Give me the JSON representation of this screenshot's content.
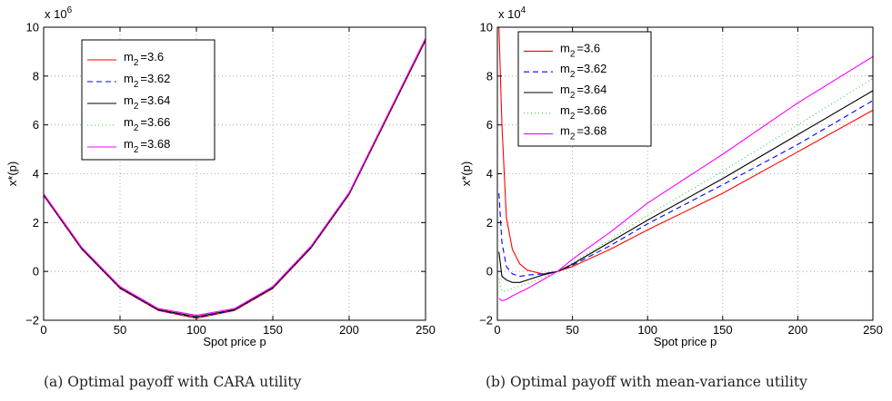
{
  "chart_data": [
    {
      "type": "line",
      "caption": "(a) Optimal payoff with CARA utility",
      "xlabel": "Spot price p",
      "ylabel": "x*(p)",
      "y_multiplier": "x 10",
      "y_multiplier_exp": "6",
      "xlim": [
        0,
        250
      ],
      "ylim": [
        -2,
        10
      ],
      "xticks": [
        0,
        50,
        100,
        150,
        200,
        250
      ],
      "yticks": [
        -2,
        0,
        2,
        4,
        6,
        8,
        10
      ],
      "grid": true,
      "legend_position": "top-left",
      "series": [
        {
          "name": "m",
          "sub": "2",
          "eq": "=3.6",
          "color": "#ff0000",
          "dash": "",
          "x": [
            0,
            25,
            50,
            75,
            100,
            125,
            150,
            175,
            200,
            250
          ],
          "y": [
            3.1,
            0.9,
            -0.7,
            -1.6,
            -1.92,
            -1.6,
            -0.7,
            0.95,
            3.15,
            9.45
          ]
        },
        {
          "name": "m",
          "sub": "2",
          "eq": "=3.62",
          "color": "#0000ff",
          "dash": "6,4",
          "x": [
            0,
            25,
            50,
            75,
            100,
            125,
            150,
            175,
            200,
            250
          ],
          "y": [
            3.12,
            0.92,
            -0.68,
            -1.58,
            -1.89,
            -1.58,
            -0.68,
            0.97,
            3.17,
            9.48
          ]
        },
        {
          "name": "m",
          "sub": "2",
          "eq": "=3.64",
          "color": "#000000",
          "dash": "",
          "x": [
            0,
            25,
            50,
            75,
            100,
            125,
            150,
            175,
            200,
            250
          ],
          "y": [
            3.14,
            0.94,
            -0.66,
            -1.56,
            -1.86,
            -1.56,
            -0.66,
            0.99,
            3.19,
            9.5
          ]
        },
        {
          "name": "m",
          "sub": "2",
          "eq": "=3.66",
          "color": "#33cc33",
          "dash": "1,3",
          "x": [
            0,
            25,
            50,
            75,
            100,
            125,
            150,
            175,
            200,
            250
          ],
          "y": [
            3.16,
            0.96,
            -0.64,
            -1.54,
            -1.83,
            -1.54,
            -0.64,
            1.01,
            3.21,
            9.53
          ]
        },
        {
          "name": "m",
          "sub": "2",
          "eq": "=3.68",
          "color": "#ff00ff",
          "dash": "",
          "x": [
            0,
            25,
            50,
            75,
            100,
            125,
            150,
            175,
            200,
            250
          ],
          "y": [
            3.18,
            0.98,
            -0.62,
            -1.52,
            -1.8,
            -1.52,
            -0.62,
            1.03,
            3.23,
            9.55
          ]
        }
      ]
    },
    {
      "type": "line",
      "caption": "(b) Optimal payoff with mean-variance utility",
      "xlabel": "Spot price p",
      "ylabel": "x*(p)",
      "y_multiplier": "x 10",
      "y_multiplier_exp": "4",
      "xlim": [
        0,
        250
      ],
      "ylim": [
        -2,
        10
      ],
      "xticks": [
        0,
        50,
        100,
        150,
        200,
        250
      ],
      "yticks": [
        -2,
        0,
        2,
        4,
        6,
        8,
        10
      ],
      "grid": true,
      "legend_position": "top-left",
      "series": [
        {
          "name": "m",
          "sub": "2",
          "eq": "=3.6",
          "color": "#ff0000",
          "dash": "",
          "x": [
            1,
            3,
            6,
            10,
            15,
            20,
            30,
            40,
            50,
            75,
            100,
            150,
            200,
            250
          ],
          "y": [
            10,
            6.0,
            2.2,
            0.9,
            0.3,
            0.05,
            -0.1,
            0.0,
            0.2,
            0.9,
            1.7,
            3.2,
            4.9,
            6.6
          ]
        },
        {
          "name": "m",
          "sub": "2",
          "eq": "=3.62",
          "color": "#0000ff",
          "dash": "6,4",
          "x": [
            1,
            3,
            6,
            10,
            15,
            20,
            30,
            40,
            50,
            75,
            100,
            150,
            200,
            250
          ],
          "y": [
            3.2,
            1.2,
            0.2,
            -0.1,
            -0.2,
            -0.15,
            -0.1,
            0.0,
            0.25,
            1.05,
            1.95,
            3.55,
            5.2,
            7.0
          ]
        },
        {
          "name": "m",
          "sub": "2",
          "eq": "=3.64",
          "color": "#000000",
          "dash": "",
          "x": [
            1,
            3,
            6,
            10,
            15,
            20,
            30,
            40,
            50,
            75,
            100,
            150,
            200,
            250
          ],
          "y": [
            0.8,
            -0.2,
            -0.35,
            -0.45,
            -0.45,
            -0.35,
            -0.15,
            0.0,
            0.3,
            1.2,
            2.1,
            3.8,
            5.6,
            7.4
          ]
        },
        {
          "name": "m",
          "sub": "2",
          "eq": "=3.66",
          "color": "#33cc33",
          "dash": "1,3",
          "x": [
            1,
            3,
            6,
            10,
            15,
            20,
            30,
            40,
            50,
            75,
            100,
            150,
            200,
            250
          ],
          "y": [
            -0.3,
            -0.8,
            -0.8,
            -0.7,
            -0.6,
            -0.5,
            -0.25,
            0.0,
            0.35,
            1.3,
            2.3,
            4.1,
            6.0,
            7.9
          ]
        },
        {
          "name": "m",
          "sub": "2",
          "eq": "=3.68",
          "color": "#ff00ff",
          "dash": "",
          "x": [
            1,
            3,
            6,
            10,
            15,
            20,
            30,
            40,
            50,
            75,
            100,
            150,
            200,
            250
          ],
          "y": [
            -1.1,
            -1.2,
            -1.15,
            -1.0,
            -0.85,
            -0.7,
            -0.35,
            0.0,
            0.5,
            1.6,
            2.8,
            4.8,
            6.9,
            8.8
          ]
        }
      ]
    }
  ]
}
